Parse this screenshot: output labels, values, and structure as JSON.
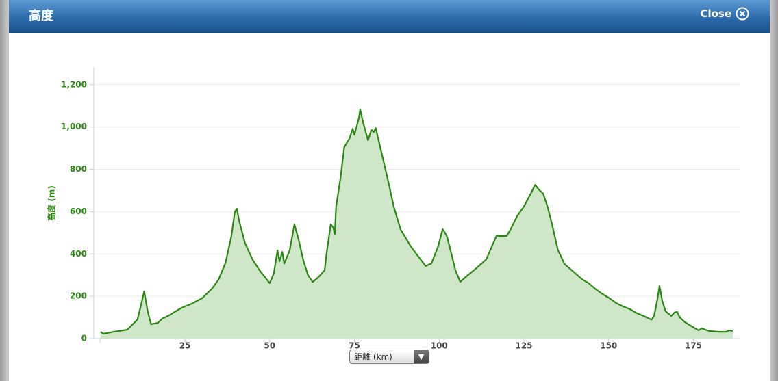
{
  "header": {
    "title": "高度",
    "close": "Close"
  },
  "chart_data": {
    "type": "area",
    "x_label": "距離 (km)",
    "y_label": "高度 (m)",
    "color": "#2a8712",
    "fill_color": "#cfe6c8",
    "grid": true,
    "xlim": [
      0,
      189
    ],
    "ylim": [
      0,
      1280
    ],
    "xticks": [
      25,
      50,
      75,
      100,
      125,
      150,
      175
    ],
    "yticks": [
      0,
      200,
      400,
      600,
      800,
      {
        "value": 1000,
        "label": "1,000"
      },
      {
        "value": 1200,
        "label": "1,200"
      }
    ],
    "x": [
      0.1,
      1,
      4,
      8,
      11,
      12,
      13,
      14,
      15,
      17,
      18.3,
      20,
      22,
      24,
      27,
      30,
      33,
      35,
      37,
      38.7,
      39.7,
      40.3,
      41,
      42.7,
      45,
      47,
      50,
      51.2,
      52.3,
      52.9,
      53.7,
      54.3,
      55.9,
      57.3,
      58.5,
      60,
      61.3,
      62.7,
      64.4,
      66.2,
      66.8,
      68,
      68.8,
      69.2,
      69.6,
      70.9,
      72,
      73.5,
      74.5,
      75,
      76.3,
      76.7,
      77.5,
      79,
      80,
      80.7,
      81.3,
      82.5,
      83.8,
      85.2,
      86.6,
      88.6,
      91.6,
      93.7,
      96,
      97.7,
      99.7,
      101,
      101.7,
      102.3,
      103.4,
      104.8,
      106.2,
      107.8,
      109.8,
      111.9,
      113.9,
      115.9,
      116.9,
      119.9,
      121,
      123,
      125,
      127,
      128.3,
      129.4,
      130.7,
      132,
      133.3,
      135,
      137,
      139.1,
      142.1,
      144.1,
      146.2,
      148.2,
      150.2,
      152.2,
      154.2,
      156.3,
      158.3,
      160.3,
      161.9,
      162.7,
      163.4,
      164.4,
      165,
      165.8,
      166.8,
      168.5,
      169.4,
      170.2,
      171,
      172.5,
      174.5,
      176.5,
      177.5,
      179.5,
      182.6,
      184.6,
      185.6,
      186.6
    ],
    "values": [
      32,
      23,
      32,
      42,
      90,
      155,
      223,
      130,
      68,
      74,
      94,
      107,
      126,
      145,
      165,
      190,
      236,
      281,
      359,
      485,
      598,
      614,
      556,
      452,
      372,
      323,
      262,
      307,
      417,
      365,
      410,
      355,
      417,
      540,
      469,
      365,
      300,
      268,
      291,
      323,
      404,
      540,
      524,
      494,
      624,
      760,
      905,
      944,
      992,
      963,
      1041,
      1083,
      1025,
      937,
      986,
      976,
      995,
      911,
      824,
      727,
      624,
      517,
      436,
      391,
      343,
      355,
      436,
      517,
      501,
      482,
      414,
      323,
      268,
      291,
      317,
      346,
      375,
      449,
      485,
      485,
      514,
      579,
      624,
      685,
      727,
      704,
      685,
      621,
      540,
      420,
      352,
      323,
      281,
      262,
      233,
      210,
      191,
      168,
      152,
      139,
      120,
      107,
      94,
      90,
      107,
      187,
      249,
      178,
      129,
      107,
      123,
      126,
      100,
      78,
      58,
      39,
      48,
      36,
      32,
      32,
      39,
      36
    ]
  }
}
